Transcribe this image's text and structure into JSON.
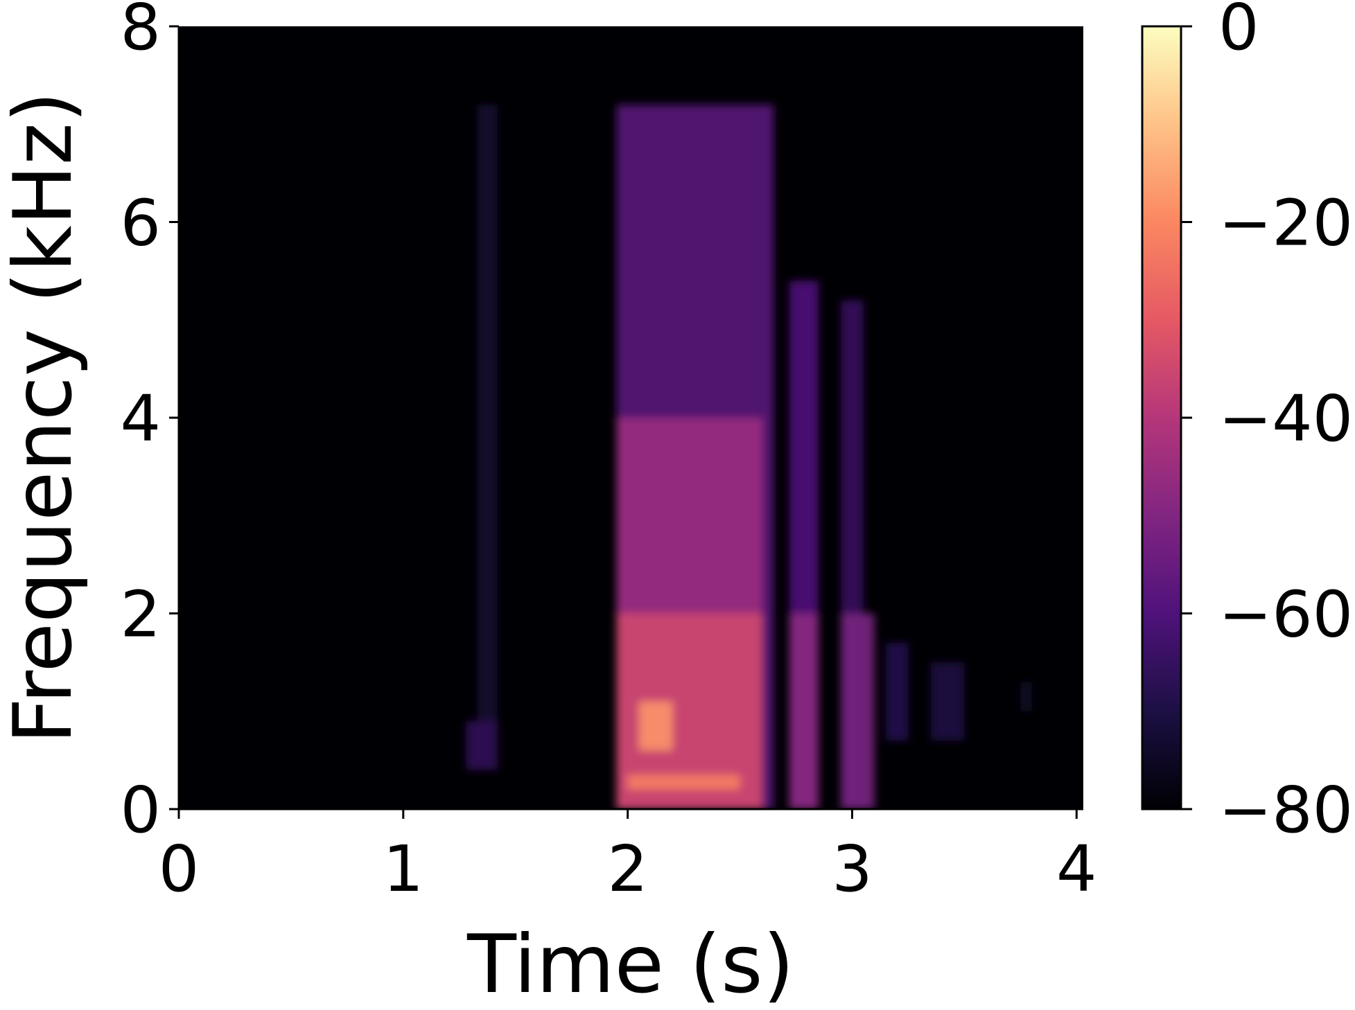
{
  "chart_data": {
    "type": "heatmap",
    "subtype": "spectrogram",
    "xlabel": "Time (s)",
    "ylabel": "Frequency (kHz)",
    "xlim": [
      0,
      4.03
    ],
    "ylim": [
      0,
      8
    ],
    "xticks": [
      0,
      1,
      2,
      3,
      4
    ],
    "xtick_labels": [
      "0",
      "1",
      "2",
      "3",
      "4"
    ],
    "yticks": [
      0,
      2,
      4,
      6,
      8
    ],
    "ytick_labels": [
      "0",
      "2",
      "4",
      "6",
      "8"
    ],
    "colorbar": {
      "colormap": "magma",
      "range": [
        -80,
        0
      ],
      "ticks": [
        0,
        -20,
        -40,
        -60,
        -80
      ],
      "tick_labels": [
        "0",
        "−20",
        "−40",
        "−60",
        "−80"
      ],
      "stops": [
        "#000004",
        "#1c1044",
        "#4f127b",
        "#812581",
        "#b5367a",
        "#e55964",
        "#fb8761",
        "#fec287",
        "#fcfdbf"
      ]
    },
    "grid": false,
    "legend": "none",
    "background_db": -80,
    "energy_regions": [
      {
        "t": [
          1.28,
          1.42
        ],
        "f": [
          0.4,
          0.9
        ],
        "db": -66
      },
      {
        "t": [
          1.33,
          1.42
        ],
        "f": [
          0.9,
          7.2
        ],
        "db": -73
      },
      {
        "t": [
          1.95,
          2.65
        ],
        "f": [
          0.0,
          7.2
        ],
        "db": -58
      },
      {
        "t": [
          1.95,
          2.6
        ],
        "f": [
          0.0,
          4.0
        ],
        "db": -45
      },
      {
        "t": [
          1.95,
          2.6
        ],
        "f": [
          0.0,
          2.0
        ],
        "db": -35
      },
      {
        "t": [
          2.05,
          2.2
        ],
        "f": [
          0.6,
          1.1
        ],
        "db": -18
      },
      {
        "t": [
          2.0,
          2.5
        ],
        "f": [
          0.2,
          0.35
        ],
        "db": -22
      },
      {
        "t": [
          2.72,
          2.85
        ],
        "f": [
          0.0,
          5.4
        ],
        "db": -60
      },
      {
        "t": [
          2.72,
          2.85
        ],
        "f": [
          0.0,
          2.0
        ],
        "db": -48
      },
      {
        "t": [
          2.95,
          3.05
        ],
        "f": [
          0.0,
          5.2
        ],
        "db": -65
      },
      {
        "t": [
          2.95,
          3.1
        ],
        "f": [
          0.0,
          2.0
        ],
        "db": -52
      },
      {
        "t": [
          3.15,
          3.25
        ],
        "f": [
          0.7,
          1.7
        ],
        "db": -68
      },
      {
        "t": [
          3.35,
          3.5
        ],
        "f": [
          0.7,
          1.5
        ],
        "db": -70
      },
      {
        "t": [
          3.75,
          3.8
        ],
        "f": [
          1.0,
          1.3
        ],
        "db": -74
      }
    ]
  }
}
